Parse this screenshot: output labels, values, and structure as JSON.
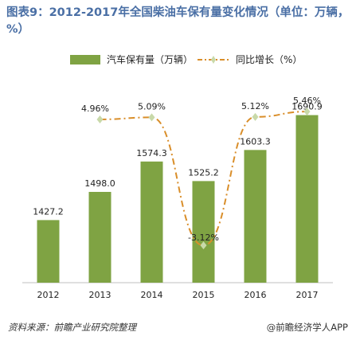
{
  "title": "图表9：2012-2017年全国柴油车保有量变化情况（单位：万辆，%）",
  "legend": {
    "bar_label": "汽车保有量（万辆）",
    "line_label": "同比增长（%）"
  },
  "colors": {
    "bar": "#7fa343",
    "line": "#d98e2a",
    "marker": "#c8d9a9",
    "title": "#4a6fa5",
    "axis": "#bfbfbf"
  },
  "footer": {
    "source": "资料来源：前瞻产业研究院整理",
    "brand": "@前瞻经济学人APP"
  },
  "chart_data": {
    "type": "bar",
    "categories": [
      "2012",
      "2013",
      "2014",
      "2015",
      "2016",
      "2017"
    ],
    "series": [
      {
        "name": "汽车保有量（万辆）",
        "type": "bar",
        "values": [
          1427.2,
          1498.0,
          1574.3,
          1525.2,
          1603.3,
          1690.9
        ],
        "labels": [
          "1427.2",
          "1498.0",
          "1574.3",
          "1525.2",
          "1603.3",
          "1690.9"
        ]
      },
      {
        "name": "同比增长（%）",
        "type": "line",
        "values": [
          null,
          4.96,
          5.09,
          -3.12,
          5.12,
          5.46
        ],
        "labels": [
          "",
          "4.96%",
          "5.09%",
          "-3.12%",
          "5.12%",
          "5.46%"
        ]
      }
    ],
    "y_bar_range": [
      1270,
      1700
    ],
    "y_line_range": [
      -5,
      7
    ],
    "legend_position": "top",
    "grid": false
  }
}
